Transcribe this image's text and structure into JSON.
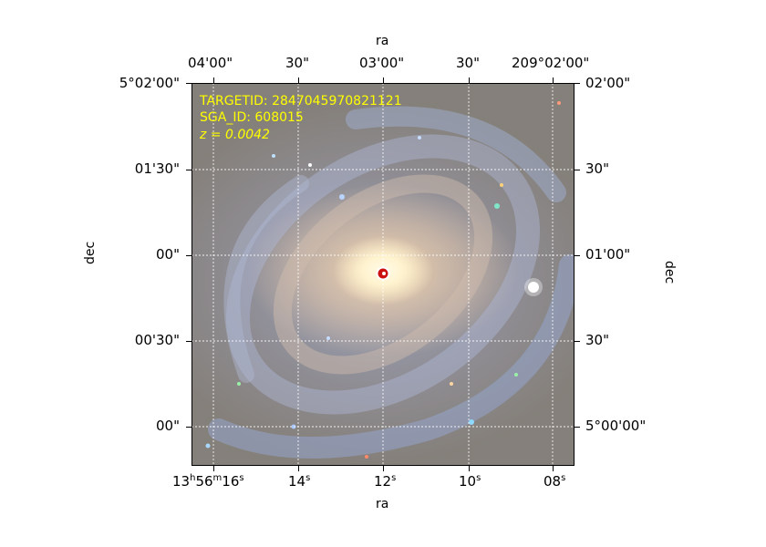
{
  "image": {
    "overlay": {
      "targetid": "TARGETID: 2847045970821121",
      "sga_id": "SGA_ID: 608015",
      "redshift": "z = 0.0042"
    }
  },
  "axes": {
    "top_title": "ra",
    "bottom_title": "ra",
    "left_title": "dec",
    "right_title": "dec",
    "top_ticks": [
      "04'00\"",
      "30\"",
      "03'00\"",
      "30\"",
      "209°02'00\""
    ],
    "bottom_ticks": [
      "13h56m16s",
      "14s",
      "12s",
      "10s",
      "08s"
    ],
    "left_ticks": [
      "5°02'00\"",
      "01'30\"",
      "00\"",
      "00'30\"",
      "00\""
    ],
    "right_ticks": [
      "02'00\"",
      "30\"",
      "01'00\"",
      "30\"",
      "5°00'00\""
    ]
  },
  "colors": {
    "overlay_text": "#ffff00",
    "marker_fill": "#cc1111",
    "marker_edge": "#ffffff",
    "grid": "#ffffff"
  }
}
